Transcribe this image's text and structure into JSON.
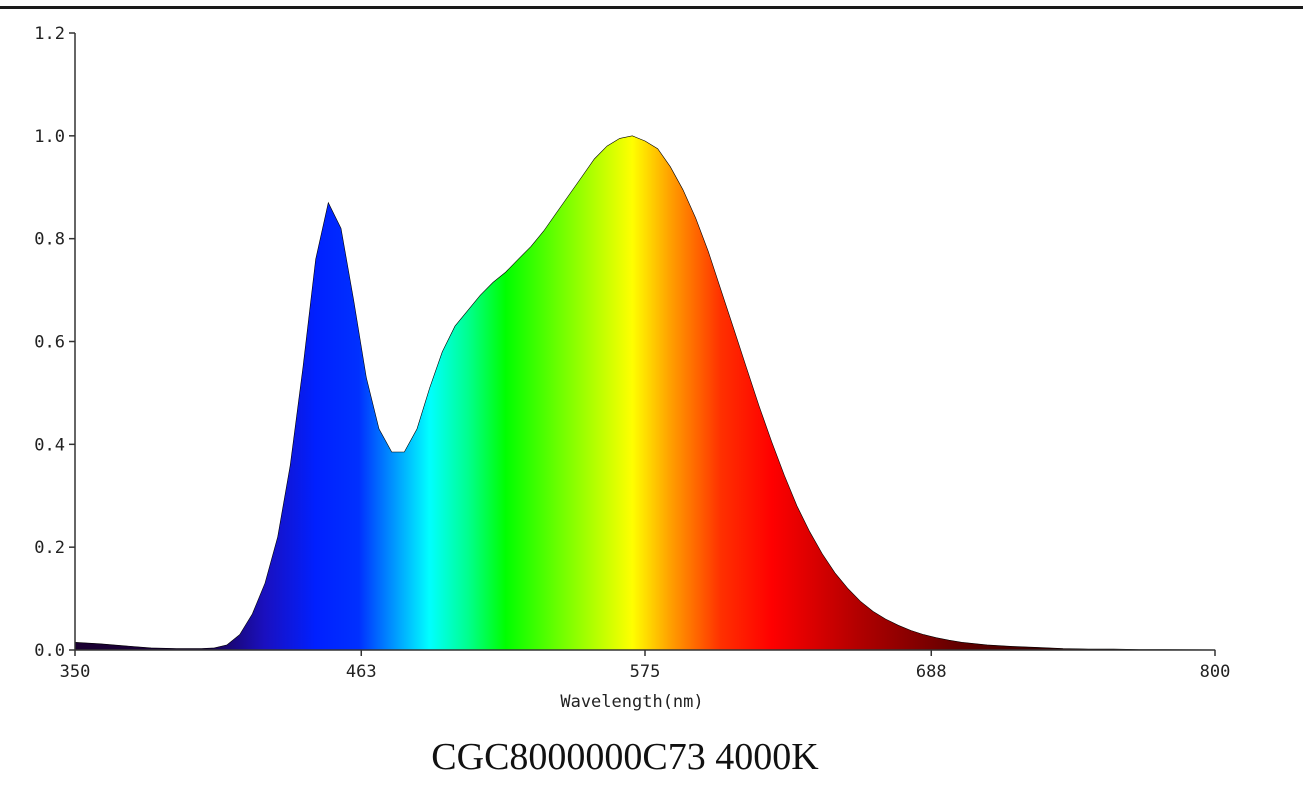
{
  "caption": "CGC8000000C73 4000K",
  "chart_data": {
    "type": "area",
    "title": "",
    "xlabel": "Wavelength(nm)",
    "ylabel": "",
    "xlim": [
      350,
      800
    ],
    "ylim": [
      0,
      1.2
    ],
    "x_ticks": [
      350,
      463,
      575,
      688,
      800
    ],
    "x_tick_labels": [
      "350",
      "463",
      "575",
      "688",
      "800"
    ],
    "y_ticks": [
      0.0,
      0.2,
      0.4,
      0.6,
      0.8,
      1.0,
      1.2
    ],
    "y_tick_labels": [
      "0.0",
      "0.2",
      "0.4",
      "0.6",
      "0.8",
      "1.0",
      "1.2"
    ],
    "grid": false,
    "fill": "spectral gradient (wavelength colored)",
    "series": [
      {
        "x": [
          350,
          360,
          370,
          380,
          390,
          400,
          405,
          410,
          415,
          420,
          425,
          430,
          435,
          440,
          445,
          450,
          455,
          460,
          465,
          470,
          475,
          480,
          485,
          490,
          495,
          500,
          505,
          510,
          515,
          520,
          525,
          530,
          535,
          540,
          545,
          550,
          555,
          560,
          565,
          570,
          575,
          580,
          585,
          590,
          595,
          600,
          605,
          610,
          615,
          620,
          625,
          630,
          635,
          640,
          645,
          650,
          655,
          660,
          665,
          670,
          675,
          680,
          685,
          690,
          695,
          700,
          710,
          720,
          730,
          740,
          750,
          760,
          770,
          780,
          790,
          800
        ],
        "y": [
          0.015,
          0.012,
          0.008,
          0.004,
          0.003,
          0.003,
          0.004,
          0.01,
          0.03,
          0.07,
          0.13,
          0.22,
          0.36,
          0.55,
          0.76,
          0.87,
          0.82,
          0.68,
          0.53,
          0.43,
          0.385,
          0.385,
          0.43,
          0.51,
          0.58,
          0.63,
          0.66,
          0.69,
          0.715,
          0.735,
          0.76,
          0.785,
          0.815,
          0.85,
          0.885,
          0.92,
          0.955,
          0.98,
          0.995,
          1.0,
          0.99,
          0.975,
          0.94,
          0.895,
          0.84,
          0.775,
          0.7,
          0.625,
          0.55,
          0.475,
          0.405,
          0.34,
          0.28,
          0.23,
          0.187,
          0.15,
          0.12,
          0.095,
          0.075,
          0.06,
          0.048,
          0.038,
          0.03,
          0.024,
          0.019,
          0.015,
          0.01,
          0.007,
          0.005,
          0.003,
          0.002,
          0.002,
          0.001,
          0.001,
          0.0005,
          0.0003
        ]
      }
    ]
  }
}
